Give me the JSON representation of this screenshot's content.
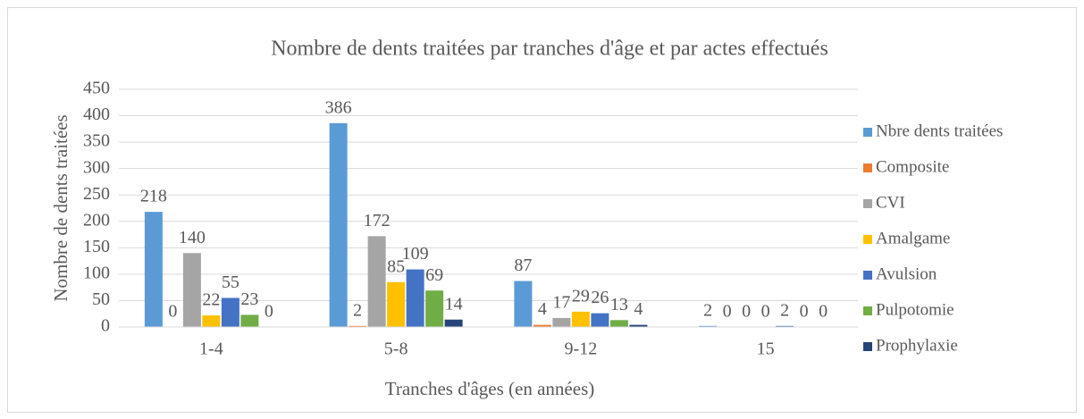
{
  "chart_data": {
    "type": "bar",
    "title": "Nombre de dents traitées par tranches d'âge et par actes effectués",
    "xlabel": "Tranches d'âges (en années)",
    "ylabel": "Nombre de dents traitées",
    "categories": [
      "1-4",
      "5-8",
      "9-12",
      "15"
    ],
    "series": [
      {
        "name": "Nbre dents traitées",
        "color": "#5b9bd5",
        "values": [
          218,
          386,
          87,
          2
        ]
      },
      {
        "name": "Composite",
        "color": "#ed7d31",
        "values": [
          0,
          2,
          4,
          0
        ]
      },
      {
        "name": "CVI",
        "color": "#a5a5a5",
        "values": [
          140,
          172,
          17,
          0
        ]
      },
      {
        "name": "Amalgame",
        "color": "#ffc000",
        "values": [
          22,
          85,
          29,
          0
        ]
      },
      {
        "name": "Avulsion",
        "color": "#4472c4",
        "values": [
          55,
          109,
          26,
          2
        ]
      },
      {
        "name": "Pulpotomie",
        "color": "#70ad47",
        "values": [
          23,
          69,
          13,
          0
        ]
      },
      {
        "name": "Prophylaxie",
        "color": "#264478",
        "values": [
          0,
          14,
          4,
          0
        ]
      }
    ],
    "ylim": [
      0,
      450
    ],
    "yticks": [
      0,
      50,
      100,
      150,
      200,
      250,
      300,
      350,
      400,
      450
    ],
    "grid": true,
    "legend": "right"
  }
}
